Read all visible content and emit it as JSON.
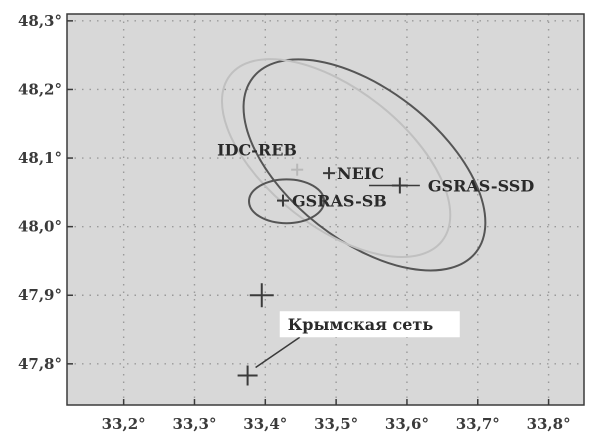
{
  "chart_data": {
    "type": "scatter",
    "title": "",
    "xlabel": "",
    "ylabel": "",
    "xlim": [
      33.12,
      33.85
    ],
    "ylim": [
      47.74,
      48.31
    ],
    "grid": true,
    "x_ticks": [
      33.2,
      33.3,
      33.4,
      33.5,
      33.6,
      33.7,
      33.8
    ],
    "x_tick_labels": [
      "33,2°",
      "33,3°",
      "33,4°",
      "33,5°",
      "33,6°",
      "33,7°",
      "33,8°"
    ],
    "y_ticks": [
      47.8,
      47.9,
      48.0,
      48.1,
      48.2,
      48.3
    ],
    "y_tick_labels": [
      "47,8°",
      "47,9°",
      "48,0°",
      "48,1°",
      "48,2°",
      "48,3°"
    ],
    "points": [
      {
        "name": "IDC-REB",
        "label": "IDC-REB",
        "x": 33.445,
        "y": 48.083,
        "color": "#b8b8b8"
      },
      {
        "name": "NEIC",
        "label": "NEIC",
        "x": 33.49,
        "y": 48.078,
        "color": "#3a3a3a"
      },
      {
        "name": "GSRAS-SSD",
        "label": "GSRAS-SSD",
        "x": 33.59,
        "y": 48.06,
        "color": "#3a3a3a"
      },
      {
        "name": "GSRAS-SB",
        "label": "GSRAS-SB",
        "x": 33.425,
        "y": 48.038,
        "color": "#3a3a3a"
      },
      {
        "name": "crimea-network-1",
        "label": "",
        "x": 33.395,
        "y": 47.9,
        "color": "#3a3a3a"
      },
      {
        "name": "crimea-network-2",
        "label": "",
        "x": 33.375,
        "y": 47.783,
        "color": "#3a3a3a"
      }
    ],
    "ellipses": [
      {
        "name": "ellipse-large",
        "cx": 33.54,
        "cy": 48.09,
        "rx": 0.2,
        "ry": 0.11,
        "angle": 38,
        "color": "#555555"
      },
      {
        "name": "ellipse-light",
        "cx": 33.5,
        "cy": 48.1,
        "rx": 0.19,
        "ry": 0.1,
        "angle": 38,
        "color": "#c0c0c0"
      },
      {
        "name": "ellipse-small",
        "cx": 33.43,
        "cy": 48.037,
        "rx": 0.053,
        "ry": 0.032,
        "angle": 0,
        "color": "#555555"
      }
    ],
    "annotation": {
      "text": "Крымская сеть",
      "point_refs": [
        "crimea-network-1",
        "crimea-network-2"
      ]
    },
    "colors": {
      "plot_background": "#d8d8d8",
      "grid": "#9a9a9a",
      "axis": "#3a3a3a"
    }
  }
}
